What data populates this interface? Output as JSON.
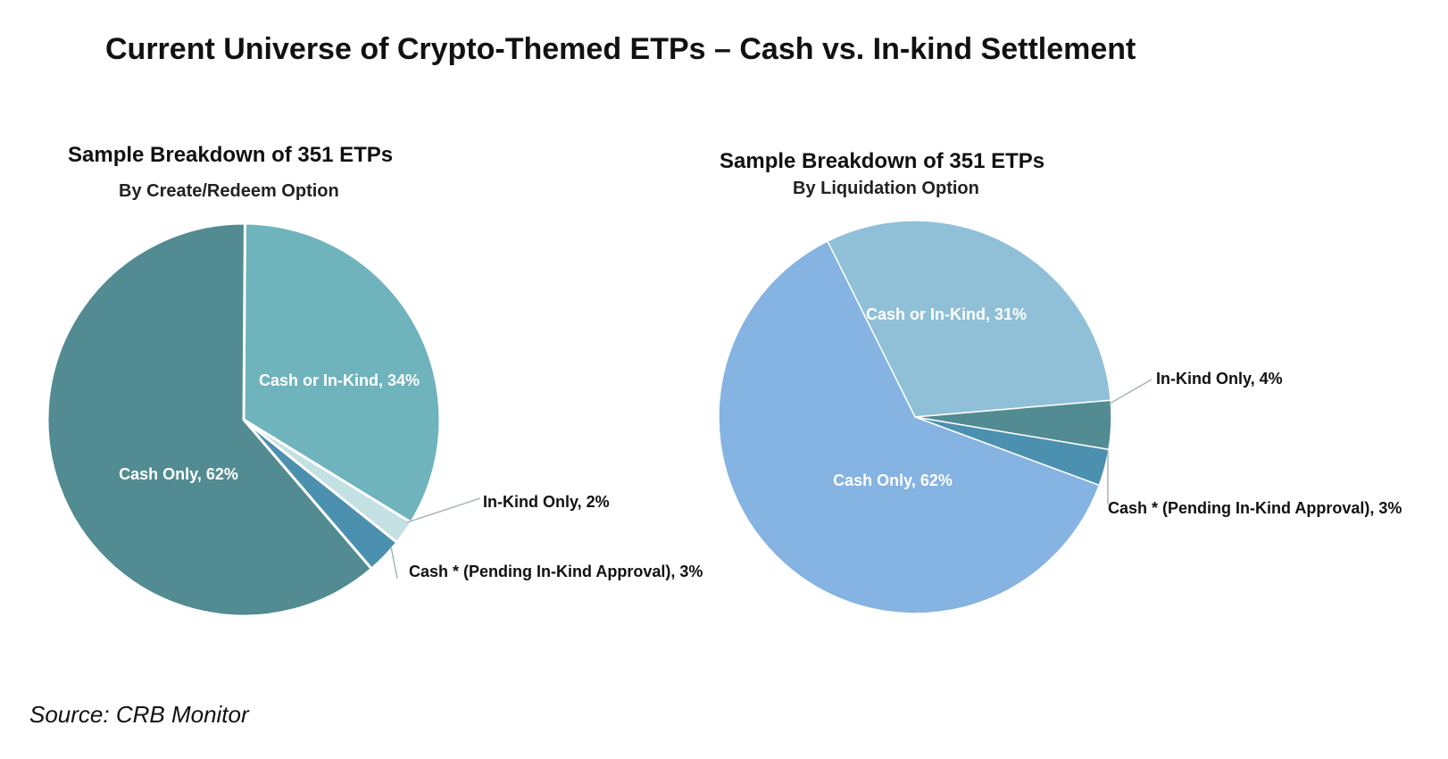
{
  "title": "Current Universe of Crypto-Themed ETPs – Cash vs. In-kind Settlement",
  "source": "Source: CRB Monitor",
  "chart_data": [
    {
      "type": "pie",
      "title": "Sample Breakdown of 351 ETPs",
      "subtitle": "By Create/Redeem Option",
      "slices": [
        {
          "label": "Cash or In-Kind",
          "value": 34,
          "text": "Cash or In-Kind, 34%",
          "color": "#6fb3bc",
          "label_inside": true
        },
        {
          "label": "In-Kind Only",
          "value": 2,
          "text": "In-Kind Only, 2%",
          "color": "#c3e0e2",
          "label_inside": false
        },
        {
          "label": "Cash * (Pending In-Kind Approval)",
          "value": 3,
          "text": "Cash * (Pending In-Kind Approval), 3%",
          "color": "#4c90b0",
          "label_inside": false
        },
        {
          "label": "Cash Only",
          "value": 62,
          "text": "Cash Only, 62%",
          "color": "#528b92",
          "label_inside": true
        }
      ]
    },
    {
      "type": "pie",
      "title": "Sample Breakdown of 351 ETPs",
      "subtitle": "By Liquidation Option",
      "slices": [
        {
          "label": "Cash or In-Kind",
          "value": 31,
          "text": "Cash or In-Kind, 31%",
          "color": "#8fc0d8",
          "label_inside": true
        },
        {
          "label": "In-Kind Only",
          "value": 4,
          "text": "In-Kind Only, 4%",
          "color": "#528b92",
          "label_inside": false
        },
        {
          "label": "Cash * (Pending In-Kind Approval)",
          "value": 3,
          "text": "Cash * (Pending In-Kind Approval), 3%",
          "color": "#4c90b0",
          "label_inside": false
        },
        {
          "label": "Cash Only",
          "value": 62,
          "text": "Cash Only, 62%",
          "color": "#85b3e2",
          "label_inside": true
        }
      ]
    }
  ]
}
